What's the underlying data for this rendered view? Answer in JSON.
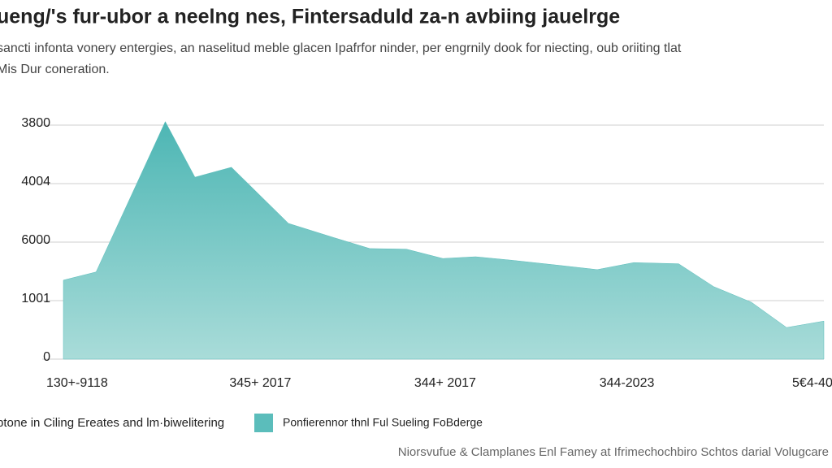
{
  "chart_data": {
    "type": "area",
    "title": "ueng/'s fur-ubor a neelng nes, Fintersaduld za-n avbiing jauelrge",
    "subtitle": [
      "sancti infonta vonery entergies, an naselitud meble glacen Ipafrfor ninder, per engrnily dook for niecting, oub oriiting tlat",
      "Mis Dur coneration."
    ],
    "x": [
      0,
      4.3,
      13.4,
      17.3,
      22.1,
      29.6,
      35.5,
      40.3,
      45.1,
      49.9,
      54.2,
      59,
      65.4,
      70.2,
      75,
      80.9,
      85.5,
      90.5,
      95.1,
      100
    ],
    "xlim": [
      0,
      100
    ],
    "xticks": [
      {
        "value": 1.8,
        "label": "130+-9118"
      },
      {
        "value": 25.9,
        "label": "345+ 2017"
      },
      {
        "value": 50.2,
        "label": "344+ 2017"
      },
      {
        "value": 74.1,
        "label": "344-2023"
      },
      {
        "value": 98.5,
        "label": "5€4-40"
      }
    ],
    "series": [
      {
        "name": "Ponfierennor thnl Ful Sueling FoBderge",
        "color": "#5bbdbb",
        "values": [
          1350,
          1490,
          4060,
          3110,
          3280,
          2320,
          2080,
          1890,
          1880,
          1720,
          1750,
          1690,
          1600,
          1530,
          1650,
          1630,
          1240,
          970,
          540,
          650
        ]
      }
    ],
    "ylim": [
      0,
      4000
    ],
    "yticks": [
      0,
      {
        "value": 1000,
        "label": "1001"
      },
      {
        "value": 2000,
        "label": "6000"
      },
      {
        "value": 3000,
        "label": "4004"
      },
      {
        "value": 4000,
        "label": "3800"
      }
    ],
    "grid": true,
    "legend_note": "ptone in Ciling Ereates and lm·biwelitering",
    "footer": "Niorsvufue & Clamplanes Enl Famey at Ifrimechochbiro Schtos darial Volugcare"
  }
}
